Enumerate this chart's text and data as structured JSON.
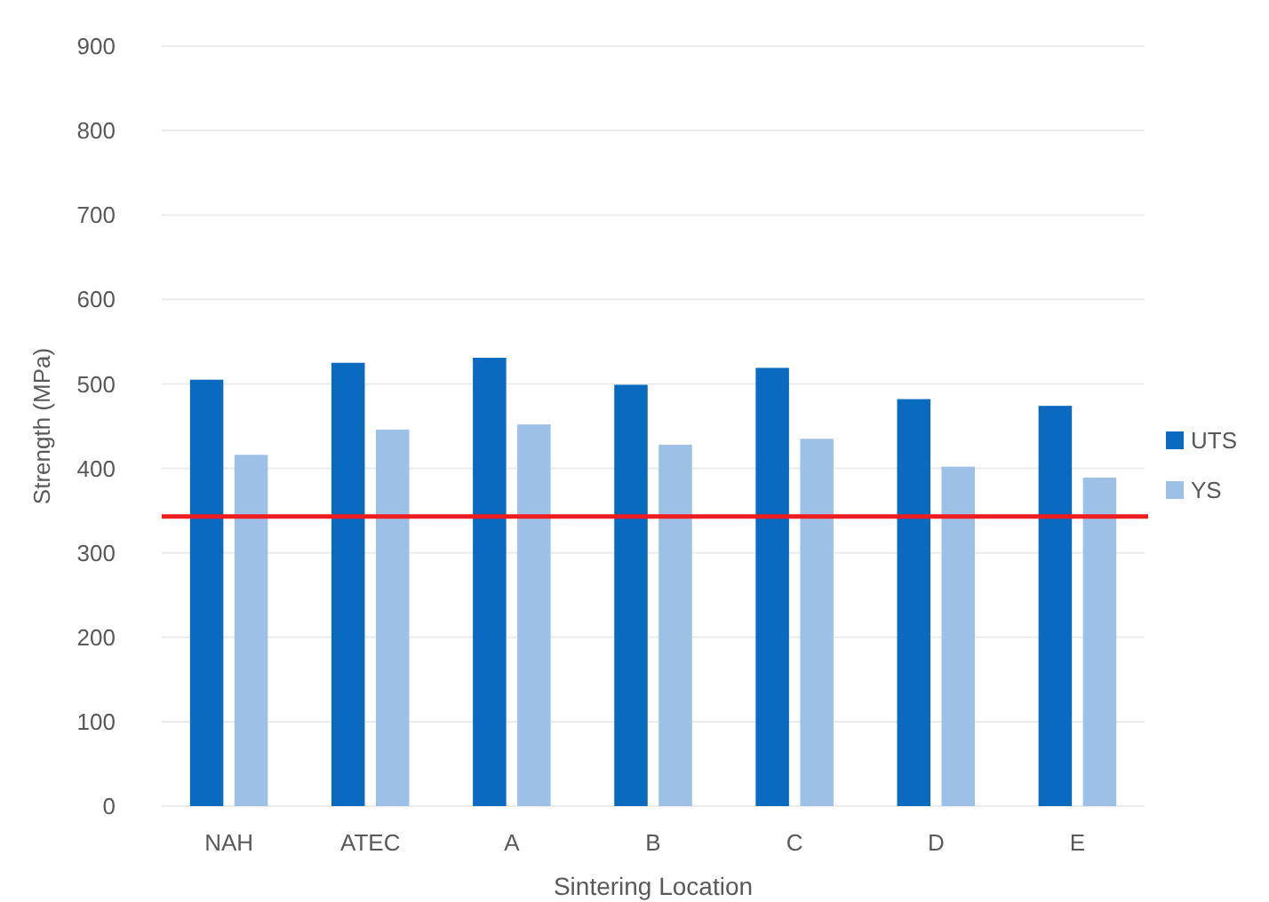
{
  "chart_data": {
    "type": "bar",
    "xlabel": "Sintering Location",
    "ylabel": "Strength (MPa)",
    "categories": [
      "NAH",
      "ATEC",
      "A",
      "B",
      "C",
      "D",
      "E"
    ],
    "series": [
      {
        "name": "UTS",
        "color": "#0a6ac0",
        "values": [
          505,
          525,
          531,
          499,
          519,
          482,
          474
        ]
      },
      {
        "name": "YS",
        "color": "#9dc0e6",
        "values": [
          416,
          446,
          452,
          428,
          435,
          402,
          389
        ]
      }
    ],
    "ylim": [
      0,
      900
    ],
    "yticks": [
      0,
      100,
      200,
      300,
      400,
      500,
      600,
      700,
      800,
      900
    ],
    "grid": "y",
    "legend": "right",
    "ref_lines": [
      {
        "axis": "y",
        "value": 343,
        "color": "#ee1c1c"
      }
    ]
  }
}
